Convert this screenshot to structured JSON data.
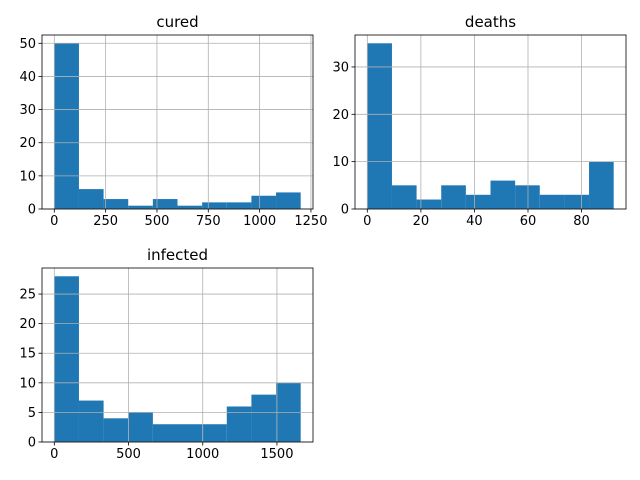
{
  "chart_data": [
    {
      "type": "bar",
      "title": "cured",
      "bin_edges": [
        0,
        120,
        240,
        360,
        480,
        600,
        720,
        840,
        960,
        1080,
        1200
      ],
      "values": [
        50,
        6,
        3,
        1,
        3,
        1,
        2,
        2,
        4,
        5
      ],
      "xlim": [
        -60,
        1260
      ],
      "ylim": [
        0,
        52.5
      ],
      "xticks": [
        0,
        250,
        500,
        750,
        1000,
        1250
      ],
      "xtick_labels": [
        "0",
        "250",
        "500",
        "750",
        "1000",
        "1250"
      ],
      "yticks": [
        0,
        10,
        20,
        30,
        40,
        50
      ],
      "ytick_labels": [
        "0",
        "10",
        "20",
        "30",
        "40",
        "50"
      ],
      "grid": true,
      "bar_color": "#1f77b4"
    },
    {
      "type": "bar",
      "title": "deaths",
      "bin_edges": [
        0,
        9.2,
        18.4,
        27.6,
        36.8,
        46,
        55.2,
        64.4,
        73.6,
        82.8,
        92
      ],
      "values": [
        35,
        5,
        2,
        5,
        3,
        6,
        5,
        3,
        3,
        10
      ],
      "xlim": [
        -4.6,
        96.6
      ],
      "ylim": [
        0,
        36.75
      ],
      "xticks": [
        0,
        20,
        40,
        60,
        80
      ],
      "xtick_labels": [
        "0",
        "20",
        "40",
        "60",
        "80"
      ],
      "yticks": [
        0,
        10,
        20,
        30
      ],
      "ytick_labels": [
        "0",
        "10",
        "20",
        "30"
      ],
      "grid": true,
      "bar_color": "#1f77b4"
    },
    {
      "type": "bar",
      "title": "infected",
      "bin_edges": [
        0,
        166,
        332,
        498,
        664,
        830,
        996,
        1162,
        1328,
        1494,
        1660
      ],
      "values": [
        28,
        7,
        4,
        5,
        3,
        3,
        3,
        6,
        8,
        10
      ],
      "xlim": [
        -83,
        1743
      ],
      "ylim": [
        0,
        29.4
      ],
      "xticks": [
        0,
        500,
        1000,
        1500
      ],
      "xtick_labels": [
        "0",
        "500",
        "1000",
        "1500"
      ],
      "yticks": [
        0,
        5,
        10,
        15,
        20,
        25
      ],
      "ytick_labels": [
        "0",
        "5",
        "10",
        "15",
        "20",
        "25"
      ],
      "grid": true,
      "bar_color": "#1f77b4"
    }
  ]
}
